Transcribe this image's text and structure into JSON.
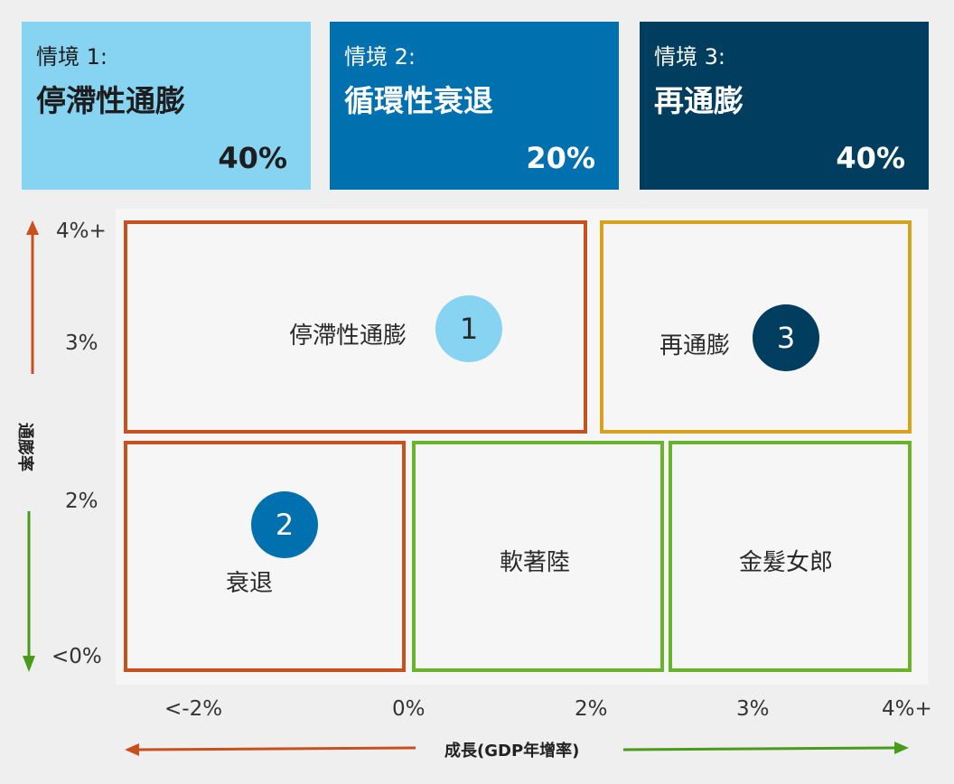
{
  "scenarios": [
    {
      "label": "情境 1:",
      "title": "停滯性通膨",
      "pct": "40%"
    },
    {
      "label": "情境 2:",
      "title": "循環性衰退",
      "pct": "20%"
    },
    {
      "label": "情境 3:",
      "title": "再通膨",
      "pct": "40%"
    }
  ],
  "quadrants": {
    "stagflation": "停滯性通膨",
    "reflation": "再通膨",
    "recession": "衰退",
    "soft_landing": "軟著陸",
    "goldilocks": "金髮女郎"
  },
  "markers": {
    "one": "1",
    "two": "2",
    "three": "3"
  },
  "y_axis": {
    "label": "通膨率",
    "ticks": [
      "4%+",
      "3%",
      "2%",
      "<0%"
    ]
  },
  "x_axis": {
    "label": "成長(GDP年增率)",
    "ticks": [
      "<-2%",
      "0%",
      "2%",
      "3%",
      "4%+"
    ]
  },
  "colors": {
    "light_blue": "#87d3f2",
    "mid_blue": "#0070ae",
    "dark_blue": "#003d5e",
    "orange": "#c9501c",
    "gold": "#d8a21c",
    "green": "#6ab42c"
  }
}
